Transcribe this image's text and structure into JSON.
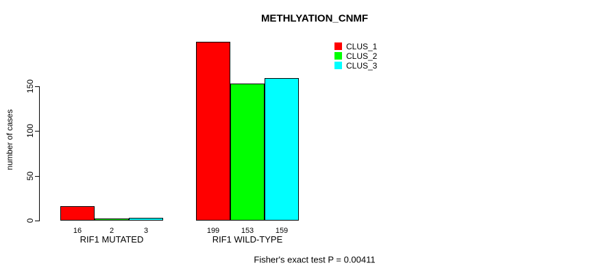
{
  "chart_data": {
    "type": "bar",
    "title": "METHLYATION_CNMF",
    "xlabel": "",
    "ylabel": "number of cases",
    "categories": [
      "RIF1 MUTATED",
      "RIF1 WILD-TYPE"
    ],
    "series": [
      {
        "name": "CLUS_1",
        "color": "#ff0000",
        "values": [
          16,
          199
        ]
      },
      {
        "name": "CLUS_2",
        "color": "#00ff00",
        "values": [
          2,
          153
        ]
      },
      {
        "name": "CLUS_3",
        "color": "#00ffff",
        "values": [
          3,
          159
        ]
      }
    ],
    "yticks": [
      0,
      50,
      100,
      150
    ],
    "ylim": [
      0,
      200
    ],
    "grid": false,
    "show_bar_value_labels": true,
    "legend_position": "top-right",
    "annotation": "Fisher's exact test P = 0.00411"
  },
  "colors": {
    "background": "#ffffff",
    "text": "#000000",
    "axis": "#000000",
    "bar_border": "#000000"
  }
}
